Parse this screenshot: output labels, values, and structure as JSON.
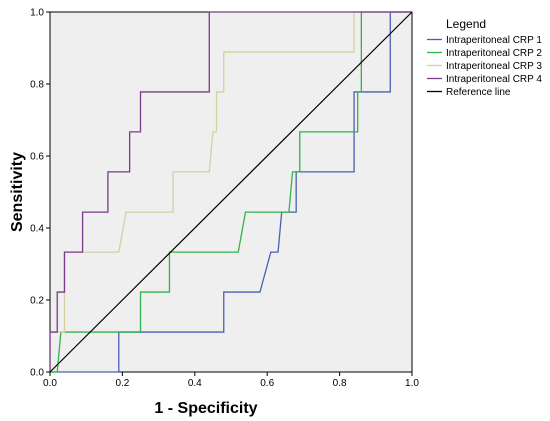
{
  "chart_data": {
    "type": "line",
    "title": "",
    "xlabel": "1 - Specificity",
    "ylabel": "Sensitivity",
    "xlim": [
      0,
      1
    ],
    "ylim": [
      0,
      1
    ],
    "x_ticks": [
      "0.0",
      "0.2",
      "0.4",
      "0.6",
      "0.8",
      "1.0"
    ],
    "y_ticks": [
      "0.0",
      "0.2",
      "0.4",
      "0.6",
      "0.8",
      "1.0"
    ],
    "plot_background": "#efefef",
    "grid": false,
    "legend": {
      "title": "Legend",
      "position": "right",
      "entries": [
        "Intraperitoneal CRP 1",
        "Intraperitoneal CRP 2",
        "Intraperitoneal CRP 3",
        "Intraperitoneal CRP 4",
        "Reference line"
      ]
    },
    "series": [
      {
        "name": "Intraperitoneal CRP 1",
        "color": "#4a5fb0",
        "points": [
          [
            0,
            0
          ],
          [
            0.19,
            0
          ],
          [
            0.19,
            0.111
          ],
          [
            0.48,
            0.111
          ],
          [
            0.48,
            0.222
          ],
          [
            0.58,
            0.222
          ],
          [
            0.61,
            0.333
          ],
          [
            0.63,
            0.333
          ],
          [
            0.64,
            0.444
          ],
          [
            0.68,
            0.444
          ],
          [
            0.68,
            0.556
          ],
          [
            0.84,
            0.556
          ],
          [
            0.84,
            0.778
          ],
          [
            0.94,
            0.778
          ],
          [
            0.94,
            1
          ],
          [
            1,
            1
          ]
        ]
      },
      {
        "name": "Intraperitoneal CRP 2",
        "color": "#2fb34a",
        "points": [
          [
            0,
            0
          ],
          [
            0.02,
            0
          ],
          [
            0.03,
            0.111
          ],
          [
            0.25,
            0.111
          ],
          [
            0.25,
            0.222
          ],
          [
            0.33,
            0.222
          ],
          [
            0.33,
            0.333
          ],
          [
            0.52,
            0.333
          ],
          [
            0.54,
            0.444
          ],
          [
            0.66,
            0.444
          ],
          [
            0.67,
            0.556
          ],
          [
            0.69,
            0.556
          ],
          [
            0.69,
            0.667
          ],
          [
            0.85,
            0.667
          ],
          [
            0.85,
            0.778
          ],
          [
            0.86,
            0.778
          ],
          [
            0.86,
            1
          ],
          [
            1,
            1
          ]
        ]
      },
      {
        "name": "Intraperitoneal CRP 3",
        "color": "#d4d0a0",
        "points": [
          [
            0,
            0
          ],
          [
            0,
            0.111
          ],
          [
            0.04,
            0.111
          ],
          [
            0.04,
            0.333
          ],
          [
            0.19,
            0.333
          ],
          [
            0.21,
            0.444
          ],
          [
            0.34,
            0.444
          ],
          [
            0.34,
            0.556
          ],
          [
            0.44,
            0.556
          ],
          [
            0.45,
            0.667
          ],
          [
            0.46,
            0.667
          ],
          [
            0.46,
            0.778
          ],
          [
            0.48,
            0.778
          ],
          [
            0.48,
            0.889
          ],
          [
            0.84,
            0.889
          ],
          [
            0.84,
            1
          ],
          [
            1,
            1
          ]
        ]
      },
      {
        "name": "Intraperitoneal CRP 4",
        "color": "#7a3a8a",
        "points": [
          [
            0,
            0
          ],
          [
            0,
            0.111
          ],
          [
            0.02,
            0.111
          ],
          [
            0.02,
            0.222
          ],
          [
            0.04,
            0.222
          ],
          [
            0.04,
            0.333
          ],
          [
            0.09,
            0.333
          ],
          [
            0.09,
            0.444
          ],
          [
            0.16,
            0.444
          ],
          [
            0.16,
            0.556
          ],
          [
            0.22,
            0.556
          ],
          [
            0.22,
            0.667
          ],
          [
            0.25,
            0.667
          ],
          [
            0.25,
            0.778
          ],
          [
            0.44,
            0.778
          ],
          [
            0.44,
            1
          ],
          [
            1,
            1
          ]
        ]
      },
      {
        "name": "Reference line",
        "color": "#000000",
        "points": [
          [
            0,
            0
          ],
          [
            1,
            1
          ]
        ]
      }
    ]
  }
}
